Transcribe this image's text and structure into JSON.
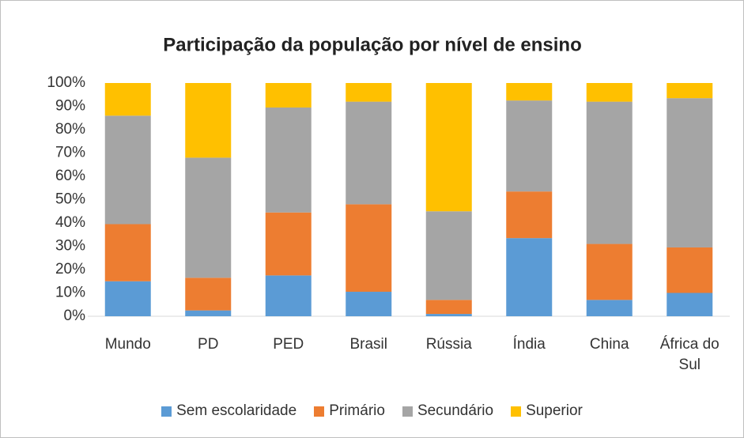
{
  "chart_data": {
    "type": "stacked_bar_percent",
    "title": "Participação da população por nível de ensino",
    "categories": [
      "Mundo",
      "PD",
      "PED",
      "Brasil",
      "Rússia",
      "Índia",
      "China",
      "África do Sul"
    ],
    "series": [
      {
        "name": "Sem escolaridade",
        "color": "#5b9bd5",
        "values": [
          15,
          2.5,
          17.5,
          10.5,
          1,
          33.5,
          7,
          10
        ]
      },
      {
        "name": "Primário",
        "color": "#ed7d31",
        "values": [
          24.5,
          14,
          27,
          37.5,
          6,
          20,
          24,
          19.5
        ]
      },
      {
        "name": "Secundário",
        "color": "#a5a5a5",
        "values": [
          46.5,
          51.5,
          45,
          44,
          38,
          39,
          61,
          64
        ]
      },
      {
        "name": "Superior",
        "color": "#ffc000",
        "values": [
          14,
          32,
          10.5,
          8,
          55,
          7.5,
          8,
          6.5
        ]
      }
    ],
    "ylim": [
      0,
      100
    ],
    "yticks": [
      {
        "value": 0,
        "label": "0%"
      },
      {
        "value": 10,
        "label": "10%"
      },
      {
        "value": 20,
        "label": "20%"
      },
      {
        "value": 30,
        "label": "30%"
      },
      {
        "value": 40,
        "label": "40%"
      },
      {
        "value": 50,
        "label": "50%"
      },
      {
        "value": 60,
        "label": "60%"
      },
      {
        "value": 70,
        "label": "70%"
      },
      {
        "value": 80,
        "label": "80%"
      },
      {
        "value": 90,
        "label": "90%"
      },
      {
        "value": 100,
        "label": "100%"
      }
    ],
    "grid": false,
    "legend": "bottom"
  }
}
